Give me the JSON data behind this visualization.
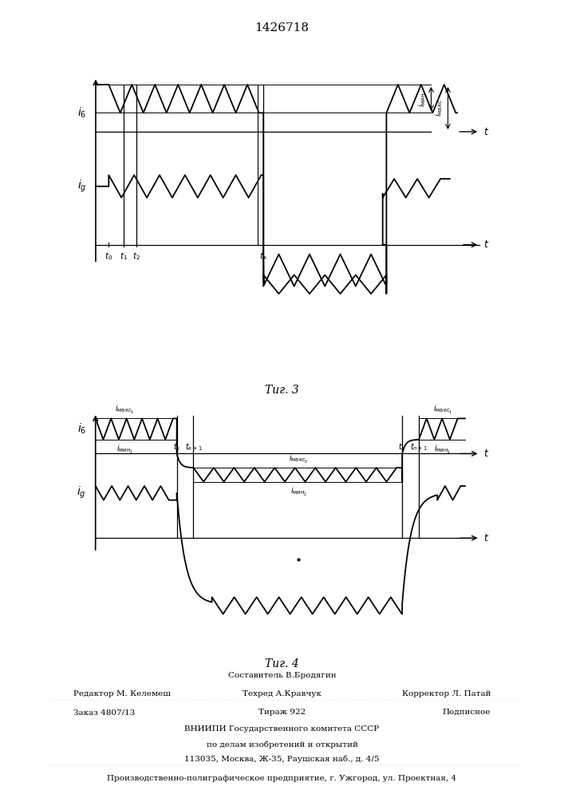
{
  "title": "1426718",
  "bg_color": "#ffffff",
  "line_color": "#000000",
  "fig3_caption": "Τиг. 3",
  "fig4_caption": "Τиг. 4",
  "footer_sestavitel": "Составитель В.Бродягин",
  "footer_redaktor": "Редактор М. Келемеш",
  "footer_tehred": "Техред А.Кравчук",
  "footer_korrektor": "Корректор Л. Патай",
  "footer_zakaz": "Заказ 4807/13",
  "footer_tirazh": "Тираж 922",
  "footer_podpisnoe": "Подписное",
  "footer_vniiipi": "ВНИИПИ Государственного комитета СССР",
  "footer_po_delam": "по делам изобретений и открытий",
  "footer_address": "113035, Москва, Ж-35, Раушская наб., д. 4/5",
  "footer_plant": "Производственно-полиграфическое предприятие, г. Ужгород, ул. Проектная, 4"
}
